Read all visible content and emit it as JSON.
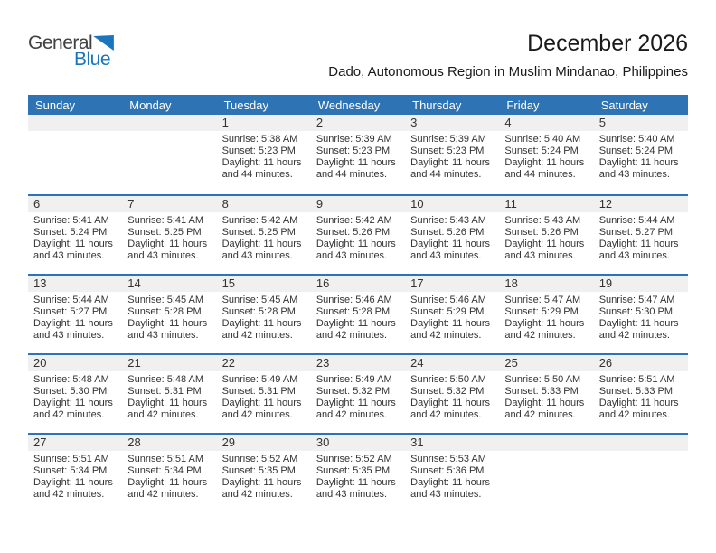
{
  "logo": {
    "general": "General",
    "blue": "Blue"
  },
  "title": "December 2026",
  "subtitle": "Dado, Autonomous Region in Muslim Mindanao, Philippines",
  "weekdays": [
    "Sunday",
    "Monday",
    "Tuesday",
    "Wednesday",
    "Thursday",
    "Friday",
    "Saturday"
  ],
  "colors": {
    "header_blue": "#2E74B5",
    "week_separator_blue": "#2E74B5",
    "day_strip_gray": "#F0F0F0",
    "logo_blue": "#1B75BC",
    "logo_dark": "#414042",
    "text": "#333333"
  },
  "weeks": [
    [
      null,
      null,
      {
        "day": "1",
        "sunrise": "Sunrise: 5:38 AM",
        "sunset": "Sunset: 5:23 PM",
        "daylight": "Daylight: 11 hours and 44 minutes."
      },
      {
        "day": "2",
        "sunrise": "Sunrise: 5:39 AM",
        "sunset": "Sunset: 5:23 PM",
        "daylight": "Daylight: 11 hours and 44 minutes."
      },
      {
        "day": "3",
        "sunrise": "Sunrise: 5:39 AM",
        "sunset": "Sunset: 5:23 PM",
        "daylight": "Daylight: 11 hours and 44 minutes."
      },
      {
        "day": "4",
        "sunrise": "Sunrise: 5:40 AM",
        "sunset": "Sunset: 5:24 PM",
        "daylight": "Daylight: 11 hours and 44 minutes."
      },
      {
        "day": "5",
        "sunrise": "Sunrise: 5:40 AM",
        "sunset": "Sunset: 5:24 PM",
        "daylight": "Daylight: 11 hours and 43 minutes."
      }
    ],
    [
      {
        "day": "6",
        "sunrise": "Sunrise: 5:41 AM",
        "sunset": "Sunset: 5:24 PM",
        "daylight": "Daylight: 11 hours and 43 minutes."
      },
      {
        "day": "7",
        "sunrise": "Sunrise: 5:41 AM",
        "sunset": "Sunset: 5:25 PM",
        "daylight": "Daylight: 11 hours and 43 minutes."
      },
      {
        "day": "8",
        "sunrise": "Sunrise: 5:42 AM",
        "sunset": "Sunset: 5:25 PM",
        "daylight": "Daylight: 11 hours and 43 minutes."
      },
      {
        "day": "9",
        "sunrise": "Sunrise: 5:42 AM",
        "sunset": "Sunset: 5:26 PM",
        "daylight": "Daylight: 11 hours and 43 minutes."
      },
      {
        "day": "10",
        "sunrise": "Sunrise: 5:43 AM",
        "sunset": "Sunset: 5:26 PM",
        "daylight": "Daylight: 11 hours and 43 minutes."
      },
      {
        "day": "11",
        "sunrise": "Sunrise: 5:43 AM",
        "sunset": "Sunset: 5:26 PM",
        "daylight": "Daylight: 11 hours and 43 minutes."
      },
      {
        "day": "12",
        "sunrise": "Sunrise: 5:44 AM",
        "sunset": "Sunset: 5:27 PM",
        "daylight": "Daylight: 11 hours and 43 minutes."
      }
    ],
    [
      {
        "day": "13",
        "sunrise": "Sunrise: 5:44 AM",
        "sunset": "Sunset: 5:27 PM",
        "daylight": "Daylight: 11 hours and 43 minutes."
      },
      {
        "day": "14",
        "sunrise": "Sunrise: 5:45 AM",
        "sunset": "Sunset: 5:28 PM",
        "daylight": "Daylight: 11 hours and 43 minutes."
      },
      {
        "day": "15",
        "sunrise": "Sunrise: 5:45 AM",
        "sunset": "Sunset: 5:28 PM",
        "daylight": "Daylight: 11 hours and 42 minutes."
      },
      {
        "day": "16",
        "sunrise": "Sunrise: 5:46 AM",
        "sunset": "Sunset: 5:28 PM",
        "daylight": "Daylight: 11 hours and 42 minutes."
      },
      {
        "day": "17",
        "sunrise": "Sunrise: 5:46 AM",
        "sunset": "Sunset: 5:29 PM",
        "daylight": "Daylight: 11 hours and 42 minutes."
      },
      {
        "day": "18",
        "sunrise": "Sunrise: 5:47 AM",
        "sunset": "Sunset: 5:29 PM",
        "daylight": "Daylight: 11 hours and 42 minutes."
      },
      {
        "day": "19",
        "sunrise": "Sunrise: 5:47 AM",
        "sunset": "Sunset: 5:30 PM",
        "daylight": "Daylight: 11 hours and 42 minutes."
      }
    ],
    [
      {
        "day": "20",
        "sunrise": "Sunrise: 5:48 AM",
        "sunset": "Sunset: 5:30 PM",
        "daylight": "Daylight: 11 hours and 42 minutes."
      },
      {
        "day": "21",
        "sunrise": "Sunrise: 5:48 AM",
        "sunset": "Sunset: 5:31 PM",
        "daylight": "Daylight: 11 hours and 42 minutes."
      },
      {
        "day": "22",
        "sunrise": "Sunrise: 5:49 AM",
        "sunset": "Sunset: 5:31 PM",
        "daylight": "Daylight: 11 hours and 42 minutes."
      },
      {
        "day": "23",
        "sunrise": "Sunrise: 5:49 AM",
        "sunset": "Sunset: 5:32 PM",
        "daylight": "Daylight: 11 hours and 42 minutes."
      },
      {
        "day": "24",
        "sunrise": "Sunrise: 5:50 AM",
        "sunset": "Sunset: 5:32 PM",
        "daylight": "Daylight: 11 hours and 42 minutes."
      },
      {
        "day": "25",
        "sunrise": "Sunrise: 5:50 AM",
        "sunset": "Sunset: 5:33 PM",
        "daylight": "Daylight: 11 hours and 42 minutes."
      },
      {
        "day": "26",
        "sunrise": "Sunrise: 5:51 AM",
        "sunset": "Sunset: 5:33 PM",
        "daylight": "Daylight: 11 hours and 42 minutes."
      }
    ],
    [
      {
        "day": "27",
        "sunrise": "Sunrise: 5:51 AM",
        "sunset": "Sunset: 5:34 PM",
        "daylight": "Daylight: 11 hours and 42 minutes."
      },
      {
        "day": "28",
        "sunrise": "Sunrise: 5:51 AM",
        "sunset": "Sunset: 5:34 PM",
        "daylight": "Daylight: 11 hours and 42 minutes."
      },
      {
        "day": "29",
        "sunrise": "Sunrise: 5:52 AM",
        "sunset": "Sunset: 5:35 PM",
        "daylight": "Daylight: 11 hours and 42 minutes."
      },
      {
        "day": "30",
        "sunrise": "Sunrise: 5:52 AM",
        "sunset": "Sunset: 5:35 PM",
        "daylight": "Daylight: 11 hours and 43 minutes."
      },
      {
        "day": "31",
        "sunrise": "Sunrise: 5:53 AM",
        "sunset": "Sunset: 5:36 PM",
        "daylight": "Daylight: 11 hours and 43 minutes."
      },
      null,
      null
    ]
  ]
}
